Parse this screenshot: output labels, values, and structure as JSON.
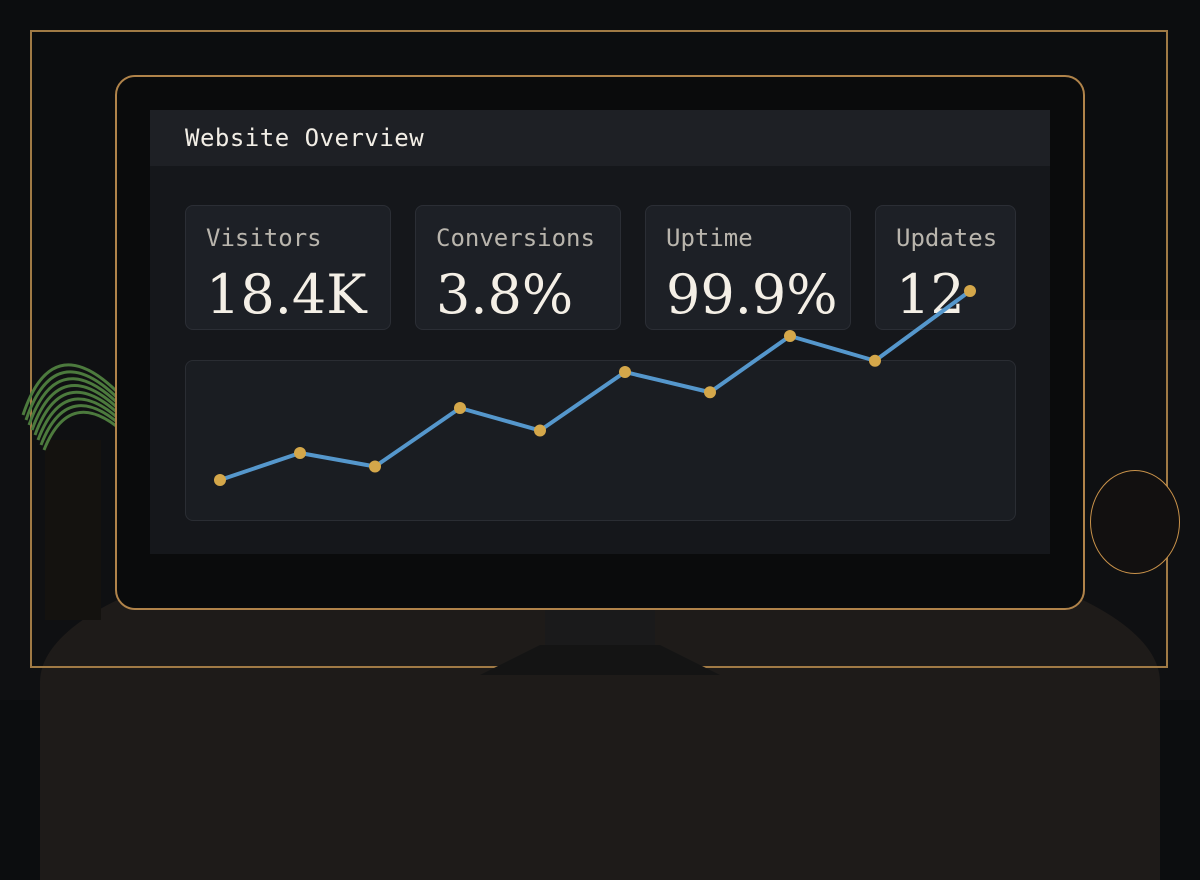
{
  "dashboard": {
    "title": "Website Overview",
    "stats": [
      {
        "label": "Visitors",
        "value": "18.4K"
      },
      {
        "label": "Conversions",
        "value": "3.8%"
      },
      {
        "label": "Uptime",
        "value": "99.9%"
      },
      {
        "label": "Updates",
        "value": "12"
      }
    ]
  },
  "chart_data": {
    "type": "line",
    "x": [
      1,
      2,
      3,
      4,
      5,
      6,
      7,
      8,
      9,
      10
    ],
    "series": [
      {
        "values": [
          20,
          32,
          26,
          52,
          42,
          68,
          59,
          84,
          73,
          104
        ]
      }
    ],
    "xlabel": "",
    "ylabel": "",
    "grid": false,
    "line_color": "#5597cc",
    "point_color": "#d4a74a"
  },
  "colors": {
    "accent": "#b0834a",
    "line": "#5597cc",
    "point": "#d4a74a"
  }
}
